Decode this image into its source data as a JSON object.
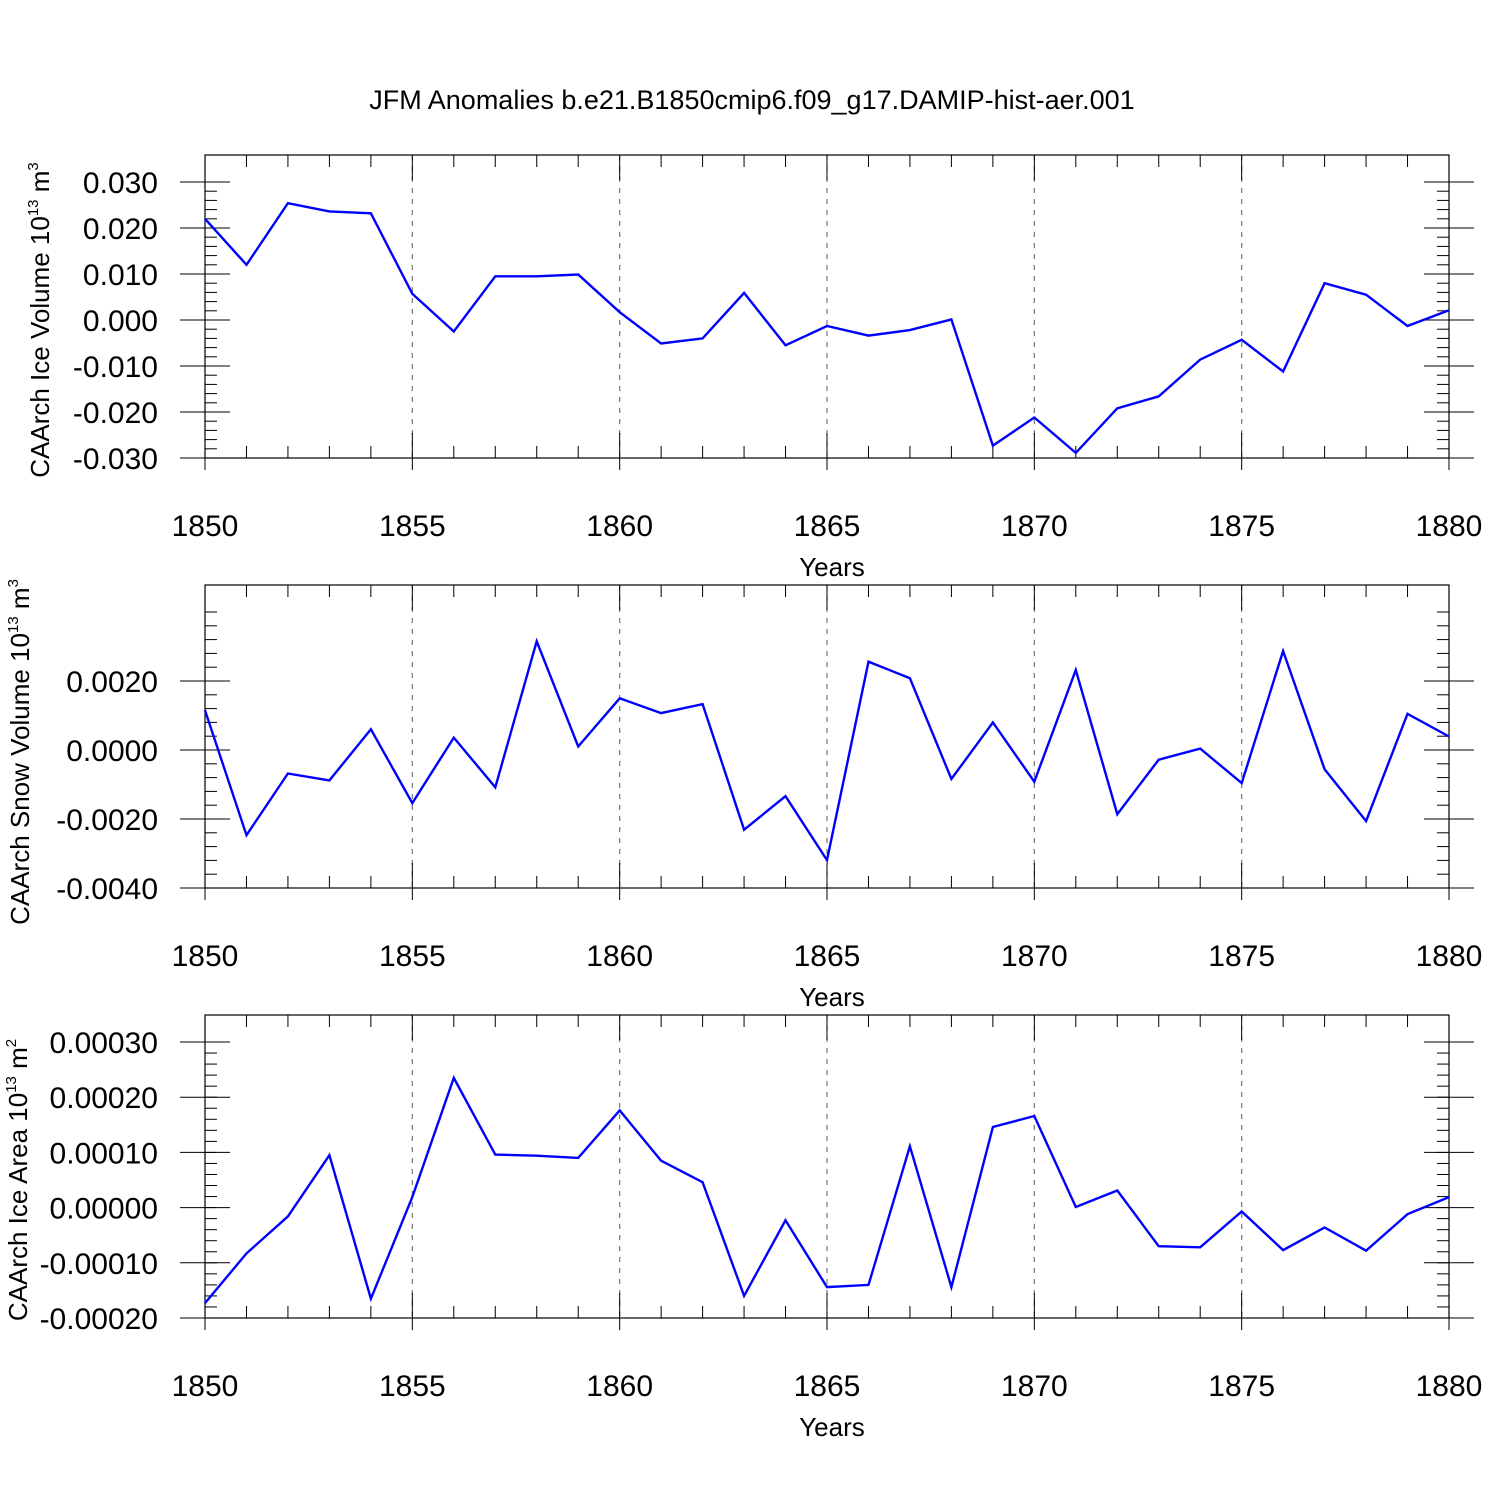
{
  "title": "JFM Anomalies b.e21.B1850cmip6.f09_g17.DAMIP-hist-aer.001",
  "colors": {
    "line": "#0000ff",
    "axis": "#000000",
    "grid": "#777777"
  },
  "chart_data": [
    {
      "type": "line",
      "xlabel": "Years",
      "ylabel_text": "CAArch Ice Volume 10",
      "ylabel_sup_exp": "13",
      "ylabel_unit": " m",
      "ylabel_sup_pow": "3",
      "xlim": [
        1850,
        1880
      ],
      "ylim": [
        -0.03,
        0.03
      ],
      "x_ticks": [
        1850,
        1855,
        1860,
        1865,
        1870,
        1875,
        1880
      ],
      "x_tick_labels": [
        "1850",
        "1855",
        "1860",
        "1865",
        "1870",
        "1875",
        "1880"
      ],
      "y_ticks": [
        -0.03,
        -0.02,
        -0.01,
        0.0,
        0.01,
        0.02,
        0.03
      ],
      "y_tick_labels": [
        "-0.030",
        "-0.020",
        "-0.010",
        "0.000",
        "0.010",
        "0.020",
        "0.030"
      ],
      "vertical_grid": [
        1855,
        1860,
        1865,
        1870,
        1875
      ],
      "x": [
        1850,
        1851,
        1852,
        1853,
        1854,
        1855,
        1856,
        1857,
        1858,
        1859,
        1860,
        1861,
        1862,
        1863,
        1864,
        1865,
        1866,
        1867,
        1868,
        1869,
        1870,
        1871,
        1872,
        1873,
        1874,
        1875,
        1876,
        1877,
        1878,
        1879,
        1880
      ],
      "values": [
        0.022,
        0.012,
        0.0254,
        0.0236,
        0.0232,
        0.0057,
        -0.0025,
        0.0095,
        0.0095,
        0.0099,
        0.0017,
        -0.0051,
        -0.004,
        0.0059,
        -0.0055,
        -0.0013,
        -0.0034,
        -0.0022,
        0.0001,
        -0.0273,
        -0.0212,
        -0.0289,
        -0.0192,
        -0.0166,
        -0.0086,
        -0.0043,
        -0.0112,
        0.008,
        0.0055,
        -0.0013,
        0.0021
      ]
    },
    {
      "type": "line",
      "xlabel": "Years",
      "ylabel_text": "CAArch Snow Volume 10",
      "ylabel_sup_exp": "13",
      "ylabel_unit": " m",
      "ylabel_sup_pow": "3",
      "xlim": [
        1850,
        1880
      ],
      "ylim": [
        -0.004,
        0.004
      ],
      "x_ticks": [
        1850,
        1855,
        1860,
        1865,
        1870,
        1875,
        1880
      ],
      "x_tick_labels": [
        "1850",
        "1855",
        "1860",
        "1865",
        "1870",
        "1875",
        "1880"
      ],
      "y_ticks": [
        -0.004,
        -0.002,
        0.0,
        0.002
      ],
      "y_tick_labels": [
        "-0.0040",
        "-0.0020",
        "0.0000",
        "0.0020"
      ],
      "vertical_grid": [
        1855,
        1860,
        1865,
        1870,
        1875
      ],
      "x": [
        1850,
        1851,
        1852,
        1853,
        1854,
        1855,
        1856,
        1857,
        1858,
        1859,
        1860,
        1861,
        1862,
        1863,
        1864,
        1865,
        1866,
        1867,
        1868,
        1869,
        1870,
        1871,
        1872,
        1873,
        1874,
        1875,
        1876,
        1877,
        1878,
        1879,
        1880
      ],
      "values": [
        0.00115,
        -0.00247,
        -0.00068,
        -0.00088,
        0.0006,
        -0.00154,
        0.00036,
        -0.00108,
        0.00315,
        0.0001,
        0.0015,
        0.00107,
        0.00133,
        -0.00231,
        -0.00134,
        -0.00319,
        0.00256,
        0.00208,
        -0.00084,
        0.0008,
        -0.00092,
        0.00232,
        -0.00186,
        -0.00028,
        4e-05,
        -0.00096,
        0.00287,
        -0.00056,
        -0.00206,
        0.00105,
        0.00039
      ]
    },
    {
      "type": "line",
      "xlabel": "Years",
      "ylabel_text": "CAArch Ice Area 10",
      "ylabel_sup_exp": "13",
      "ylabel_unit": " m",
      "ylabel_sup_pow": "2",
      "xlim": [
        1850,
        1880
      ],
      "ylim": [
        -0.0002,
        0.0003
      ],
      "x_ticks": [
        1850,
        1855,
        1860,
        1865,
        1870,
        1875,
        1880
      ],
      "x_tick_labels": [
        "1850",
        "1855",
        "1860",
        "1865",
        "1870",
        "1875",
        "1880"
      ],
      "y_ticks": [
        -0.0002,
        -0.0001,
        0.0,
        0.0001,
        0.0002,
        0.0003
      ],
      "y_tick_labels": [
        "-0.00020",
        "-0.00010",
        "0.00000",
        "0.00010",
        "0.00020",
        "0.00030"
      ],
      "vertical_grid": [
        1855,
        1860,
        1865,
        1870,
        1875
      ],
      "x": [
        1850,
        1851,
        1852,
        1853,
        1854,
        1855,
        1856,
        1857,
        1858,
        1859,
        1860,
        1861,
        1862,
        1863,
        1864,
        1865,
        1866,
        1867,
        1868,
        1869,
        1870,
        1871,
        1872,
        1873,
        1874,
        1875,
        1876,
        1877,
        1878,
        1879,
        1880
      ],
      "values": [
        -0.000173,
        -8.3e-05,
        -1.6e-05,
        9.5e-05,
        -0.000165,
        1.9e-05,
        0.000235,
        9.6e-05,
        9.4e-05,
        9e-05,
        0.000176,
        8.5e-05,
        4.6e-05,
        -0.00016,
        -2.3e-05,
        -0.000144,
        -0.00014,
        0.000111,
        -0.000144,
        0.000146,
        0.000166,
        1e-06,
        3.1e-05,
        -7e-05,
        -7.2e-05,
        -7e-06,
        -7.7e-05,
        -3.6e-05,
        -7.8e-05,
        -1.2e-05,
        1.9e-05
      ]
    }
  ]
}
